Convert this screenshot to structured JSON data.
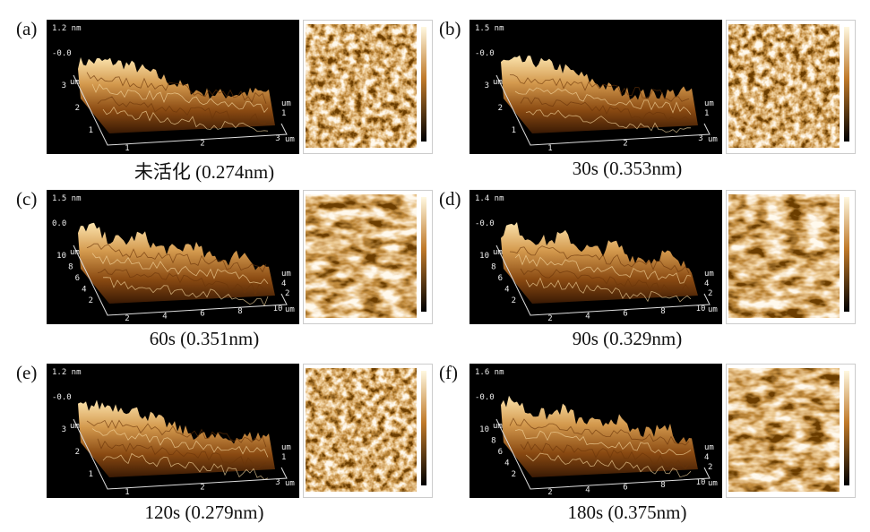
{
  "panels": [
    {
      "label": "(a)",
      "caption": "未活化 (0.274nm)",
      "z_max": "1.2 nm",
      "z_zero": "-0.0",
      "unit": "um",
      "y_ticks": [
        "3",
        "2",
        "1"
      ],
      "x_ticks": [
        "1",
        "2",
        "3"
      ],
      "side_ticks": [
        "1"
      ]
    },
    {
      "label": "(b)",
      "caption": "30s (0.353nm)",
      "z_max": "1.5 nm",
      "z_zero": "-0.0",
      "unit": "um",
      "y_ticks": [
        "3",
        "2",
        "1"
      ],
      "x_ticks": [
        "1",
        "2",
        "3"
      ],
      "side_ticks": [
        "1"
      ]
    },
    {
      "label": "(c)",
      "caption": "60s (0.351nm)",
      "z_max": "1.5 nm",
      "z_zero": "0.0",
      "unit": "um",
      "y_ticks": [
        "10",
        "8",
        "6",
        "4",
        "2"
      ],
      "x_ticks": [
        "2",
        "4",
        "6",
        "8",
        "10"
      ],
      "side_ticks": [
        "4",
        "2"
      ]
    },
    {
      "label": "(d)",
      "caption": "90s (0.329nm)",
      "z_max": "1.4 nm",
      "z_zero": "-0.0",
      "unit": "um",
      "y_ticks": [
        "10",
        "8",
        "6",
        "4",
        "2"
      ],
      "x_ticks": [
        "2",
        "4",
        "6",
        "8",
        "10"
      ],
      "side_ticks": [
        "4",
        "2"
      ]
    },
    {
      "label": "(e)",
      "caption": "120s (0.279nm)",
      "z_max": "1.2 nm",
      "z_zero": "-0.0",
      "unit": "um",
      "y_ticks": [
        "3",
        "2",
        "1"
      ],
      "x_ticks": [
        "1",
        "2",
        "3"
      ],
      "side_ticks": [
        "1"
      ]
    },
    {
      "label": "(f)",
      "caption": "180s (0.375nm)",
      "z_max": "1.6 nm",
      "z_zero": "-0.0",
      "unit": "um",
      "y_ticks": [
        "10",
        "8",
        "6",
        "4",
        "2"
      ],
      "x_ticks": [
        "2",
        "4",
        "6",
        "8",
        "10"
      ],
      "side_ticks": [
        "4",
        "2"
      ]
    }
  ]
}
